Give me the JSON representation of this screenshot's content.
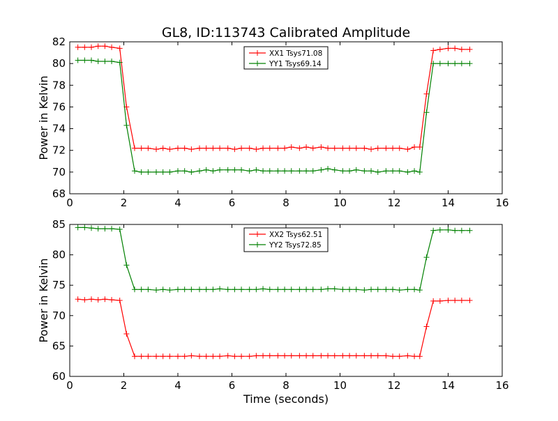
{
  "figure": {
    "title": "GL8, ID:113743 Calibrated Amplitude",
    "xlabel": "Time (seconds)"
  },
  "colors": {
    "red": "#ff0000",
    "green": "#008000",
    "axes": "#000000",
    "background": "#ffffff"
  },
  "chart_data": [
    {
      "type": "line",
      "title": "GL8, ID:113743 Calibrated Amplitude",
      "xlabel": "",
      "ylabel": "Power in Kelvin",
      "xlim": [
        0,
        16
      ],
      "ylim": [
        68,
        82
      ],
      "xticks": [
        0,
        2,
        4,
        6,
        8,
        10,
        12,
        14,
        16
      ],
      "yticks": [
        68,
        70,
        72,
        74,
        76,
        78,
        80,
        82
      ],
      "grid": false,
      "legend": "top-center",
      "x": [
        0.3,
        0.55,
        0.8,
        1.05,
        1.3,
        1.55,
        1.85,
        2.1,
        2.4,
        2.65,
        2.9,
        3.2,
        3.45,
        3.7,
        4.0,
        4.25,
        4.5,
        4.8,
        5.05,
        5.3,
        5.55,
        5.85,
        6.1,
        6.35,
        6.65,
        6.9,
        7.15,
        7.4,
        7.7,
        7.95,
        8.2,
        8.5,
        8.75,
        9.0,
        9.3,
        9.55,
        9.8,
        10.1,
        10.35,
        10.6,
        10.9,
        11.15,
        11.4,
        11.7,
        11.95,
        12.2,
        12.5,
        12.75,
        12.95,
        13.2,
        13.45,
        13.7,
        14.0,
        14.25,
        14.5,
        14.8
      ],
      "series": [
        {
          "name": "XX1 Tsys71.08",
          "color": "#ff0000",
          "values": [
            81.5,
            81.5,
            81.5,
            81.6,
            81.6,
            81.5,
            81.4,
            76.0,
            72.2,
            72.2,
            72.2,
            72.1,
            72.2,
            72.1,
            72.2,
            72.2,
            72.1,
            72.2,
            72.2,
            72.2,
            72.2,
            72.2,
            72.1,
            72.2,
            72.2,
            72.1,
            72.2,
            72.2,
            72.2,
            72.2,
            72.3,
            72.2,
            72.3,
            72.2,
            72.3,
            72.2,
            72.2,
            72.2,
            72.2,
            72.2,
            72.2,
            72.1,
            72.2,
            72.2,
            72.2,
            72.2,
            72.1,
            72.3,
            72.3,
            77.2,
            81.2,
            81.3,
            81.4,
            81.4,
            81.3,
            81.3
          ]
        },
        {
          "name": "YY1 Tsys69.14",
          "color": "#008000",
          "values": [
            80.3,
            80.3,
            80.3,
            80.2,
            80.2,
            80.2,
            80.1,
            74.3,
            70.1,
            70.0,
            70.0,
            70.0,
            70.0,
            70.0,
            70.1,
            70.1,
            70.0,
            70.1,
            70.2,
            70.1,
            70.2,
            70.2,
            70.2,
            70.2,
            70.1,
            70.2,
            70.1,
            70.1,
            70.1,
            70.1,
            70.1,
            70.1,
            70.1,
            70.1,
            70.2,
            70.3,
            70.2,
            70.1,
            70.1,
            70.2,
            70.1,
            70.1,
            70.0,
            70.1,
            70.1,
            70.1,
            70.0,
            70.1,
            70.0,
            75.5,
            80.0,
            80.0,
            80.0,
            80.0,
            80.0,
            80.0
          ]
        }
      ]
    },
    {
      "type": "line",
      "title": "",
      "xlabel": "Time (seconds)",
      "ylabel": "Power in Kelvin",
      "xlim": [
        0,
        16
      ],
      "ylim": [
        60,
        85
      ],
      "xticks": [
        0,
        2,
        4,
        6,
        8,
        10,
        12,
        14,
        16
      ],
      "yticks": [
        60,
        65,
        70,
        75,
        80,
        85
      ],
      "grid": false,
      "legend": "top-center",
      "x": [
        0.3,
        0.55,
        0.8,
        1.05,
        1.3,
        1.55,
        1.85,
        2.1,
        2.4,
        2.65,
        2.9,
        3.2,
        3.45,
        3.7,
        4.0,
        4.25,
        4.5,
        4.8,
        5.05,
        5.3,
        5.55,
        5.85,
        6.1,
        6.35,
        6.65,
        6.9,
        7.15,
        7.4,
        7.7,
        7.95,
        8.2,
        8.5,
        8.75,
        9.0,
        9.3,
        9.55,
        9.8,
        10.1,
        10.35,
        10.6,
        10.9,
        11.15,
        11.4,
        11.7,
        11.95,
        12.2,
        12.5,
        12.75,
        12.95,
        13.2,
        13.45,
        13.7,
        14.0,
        14.25,
        14.5,
        14.8
      ],
      "series": [
        {
          "name": "XX2 Tsys62.51",
          "color": "#ff0000",
          "values": [
            72.7,
            72.6,
            72.7,
            72.6,
            72.7,
            72.6,
            72.5,
            67.0,
            63.3,
            63.3,
            63.3,
            63.3,
            63.3,
            63.3,
            63.3,
            63.3,
            63.4,
            63.3,
            63.3,
            63.3,
            63.3,
            63.4,
            63.3,
            63.3,
            63.3,
            63.4,
            63.4,
            63.4,
            63.4,
            63.4,
            63.4,
            63.4,
            63.4,
            63.4,
            63.4,
            63.4,
            63.4,
            63.4,
            63.4,
            63.4,
            63.4,
            63.4,
            63.4,
            63.4,
            63.3,
            63.3,
            63.4,
            63.3,
            63.3,
            68.2,
            72.4,
            72.4,
            72.5,
            72.5,
            72.5,
            72.5
          ]
        },
        {
          "name": "YY2 Tsys72.85",
          "color": "#008000",
          "values": [
            84.5,
            84.5,
            84.4,
            84.3,
            84.3,
            84.3,
            84.2,
            78.3,
            74.3,
            74.3,
            74.3,
            74.2,
            74.3,
            74.2,
            74.3,
            74.3,
            74.3,
            74.3,
            74.3,
            74.3,
            74.4,
            74.3,
            74.3,
            74.3,
            74.3,
            74.3,
            74.4,
            74.3,
            74.3,
            74.3,
            74.3,
            74.3,
            74.3,
            74.3,
            74.3,
            74.4,
            74.4,
            74.3,
            74.3,
            74.3,
            74.2,
            74.3,
            74.3,
            74.3,
            74.3,
            74.2,
            74.3,
            74.3,
            74.2,
            79.6,
            84.0,
            84.1,
            84.1,
            84.0,
            84.0,
            84.0
          ]
        }
      ]
    }
  ]
}
